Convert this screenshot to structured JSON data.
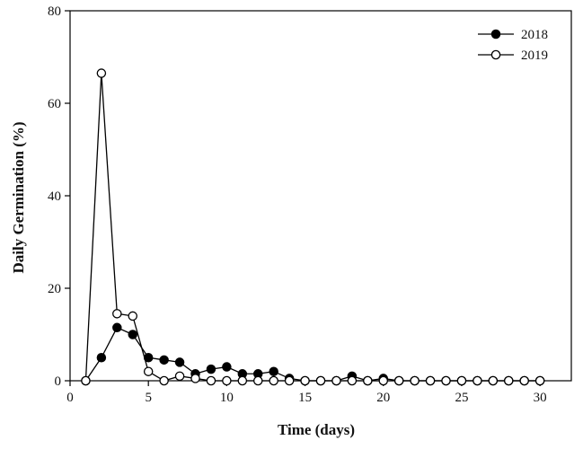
{
  "chart_data": {
    "type": "line",
    "xlabel": "Time (days)",
    "ylabel": "Daily Germination (%)",
    "xlim": [
      0,
      32
    ],
    "ylim": [
      0,
      80
    ],
    "xticks": [
      0,
      5,
      10,
      15,
      20,
      25,
      30
    ],
    "yticks": [
      0,
      20,
      40,
      60,
      80
    ],
    "grid": false,
    "legend_position": "top-right",
    "x": [
      1,
      2,
      3,
      4,
      5,
      6,
      7,
      8,
      9,
      10,
      11,
      12,
      13,
      14,
      15,
      16,
      17,
      18,
      19,
      20,
      21,
      22,
      23,
      24,
      25,
      26,
      27,
      28,
      29,
      30
    ],
    "series": [
      {
        "name": "2018",
        "marker": "filled-circle",
        "color": "#000000",
        "values": [
          0,
          5,
          11.5,
          10,
          5,
          4.5,
          4,
          1.5,
          2.5,
          3,
          1.5,
          1.5,
          2,
          0.5,
          0,
          0,
          0,
          1,
          0,
          0.5,
          0,
          0,
          0,
          0,
          0,
          0,
          0,
          0,
          0,
          0
        ]
      },
      {
        "name": "2019",
        "marker": "open-circle",
        "color": "#000000",
        "values": [
          0,
          66.5,
          14.5,
          14,
          2,
          0,
          1,
          0.5,
          0,
          0,
          0,
          0,
          0,
          0,
          0,
          0,
          0,
          0,
          0,
          0,
          0,
          0,
          0,
          0,
          0,
          0,
          0,
          0,
          0,
          0
        ]
      }
    ]
  }
}
